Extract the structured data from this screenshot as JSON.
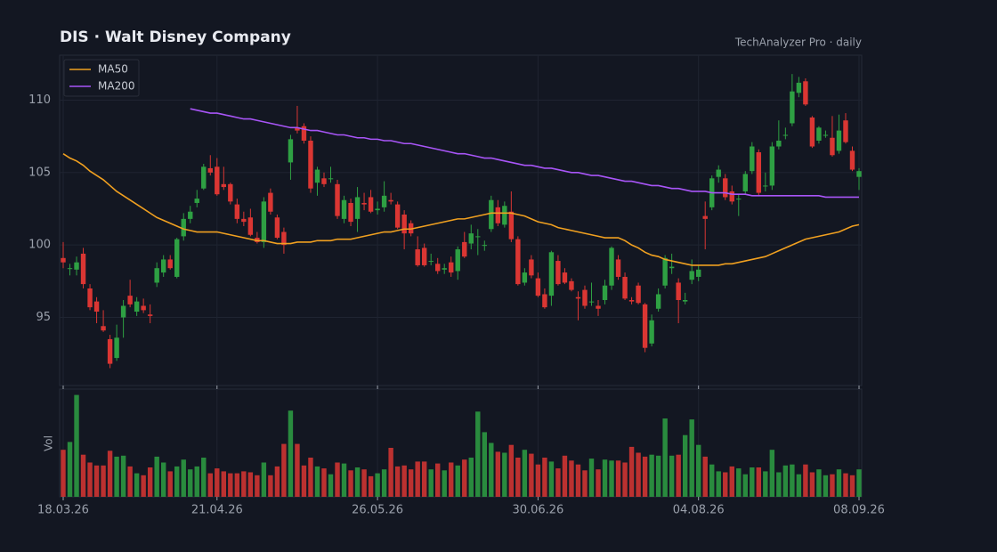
{
  "chart_data": {
    "type": "candlestick",
    "title": "DIS  ·  Walt Disney Company",
    "subtitle": "TechAnalyzer Pro · daily",
    "volume_label": "Vol",
    "up_color": "#2ea043",
    "down_color": "#da3633",
    "grid": true,
    "legend": "upper left",
    "ylim": [
      90.3,
      113.1
    ],
    "yticks": [
      95,
      100,
      105,
      110
    ],
    "vlim": [
      0,
      110
    ],
    "categories": [
      "18.03.26",
      null,
      null,
      null,
      null,
      null,
      null,
      null,
      null,
      null,
      null,
      null,
      null,
      null,
      null,
      null,
      null,
      null,
      null,
      null,
      null,
      null,
      null,
      "21.04.26",
      null,
      null,
      null,
      null,
      null,
      null,
      null,
      null,
      null,
      null,
      null,
      null,
      null,
      null,
      null,
      null,
      null,
      null,
      null,
      null,
      null,
      null,
      null,
      "26.05.26",
      null,
      null,
      null,
      null,
      null,
      null,
      null,
      null,
      null,
      null,
      null,
      null,
      null,
      null,
      null,
      null,
      null,
      null,
      null,
      null,
      null,
      null,
      null,
      "30.06.26",
      null,
      null,
      null,
      null,
      null,
      null,
      null,
      null,
      null,
      null,
      null,
      null,
      null,
      null,
      null,
      null,
      null,
      null,
      null,
      null,
      null,
      null,
      null,
      "04.08.26",
      null,
      null,
      null,
      null,
      null,
      null,
      null,
      null,
      null,
      null,
      null,
      null,
      null,
      null,
      null,
      null,
      null,
      null,
      null,
      null,
      null,
      null,
      null,
      "08.09.26"
    ],
    "ohlc": [
      [
        99.1,
        100.2,
        98.4,
        98.8
      ],
      [
        98.4,
        98.7,
        97.9,
        98.4
      ],
      [
        98.3,
        99.2,
        97.9,
        98.8
      ],
      [
        99.4,
        99.8,
        97.0,
        97.3
      ],
      [
        97.0,
        97.3,
        95.5,
        95.7
      ],
      [
        96.1,
        96.4,
        94.6,
        95.4
      ],
      [
        94.4,
        95.5,
        94.0,
        94.1
      ],
      [
        93.5,
        93.8,
        91.5,
        91.8
      ],
      [
        92.2,
        94.5,
        92.0,
        93.6
      ],
      [
        95.0,
        96.2,
        93.6,
        95.8
      ],
      [
        96.5,
        97.6,
        95.7,
        95.9
      ],
      [
        95.4,
        96.4,
        95.1,
        96.1
      ],
      [
        95.8,
        96.3,
        95.3,
        95.5
      ],
      [
        95.2,
        95.9,
        94.6,
        95.1
      ],
      [
        97.4,
        98.8,
        97.1,
        98.4
      ],
      [
        98.1,
        99.3,
        97.8,
        99.0
      ],
      [
        99.0,
        99.3,
        98.3,
        98.4
      ],
      [
        97.8,
        100.5,
        97.7,
        100.4
      ],
      [
        100.6,
        102.2,
        100.3,
        101.8
      ],
      [
        101.8,
        102.7,
        101.5,
        102.3
      ],
      [
        102.9,
        103.8,
        102.6,
        103.2
      ],
      [
        103.9,
        105.6,
        103.8,
        105.4
      ],
      [
        105.3,
        106.2,
        104.8,
        105.0
      ],
      [
        105.4,
        106.0,
        103.4,
        103.5
      ],
      [
        104.2,
        105.4,
        103.8,
        104.0
      ],
      [
        104.2,
        104.3,
        102.8,
        103.0
      ],
      [
        102.8,
        103.2,
        101.5,
        101.8
      ],
      [
        101.8,
        102.3,
        101.3,
        101.6
      ],
      [
        101.9,
        102.5,
        100.6,
        100.7
      ],
      [
        100.5,
        100.9,
        100.1,
        100.2
      ],
      [
        100.2,
        103.3,
        99.8,
        103.0
      ],
      [
        103.6,
        103.9,
        102.1,
        102.3
      ],
      [
        101.9,
        102.1,
        100.4,
        100.5
      ],
      [
        100.9,
        101.2,
        99.4,
        100.0
      ],
      [
        105.7,
        107.6,
        104.5,
        107.3
      ],
      [
        108.1,
        109.6,
        107.7,
        107.9
      ],
      [
        108.2,
        108.4,
        107.0,
        107.2
      ],
      [
        107.2,
        107.5,
        103.6,
        103.9
      ],
      [
        104.3,
        105.4,
        103.4,
        105.2
      ],
      [
        104.6,
        105.0,
        104.0,
        104.2
      ],
      [
        104.6,
        105.4,
        104.3,
        104.6
      ],
      [
        104.2,
        104.5,
        101.8,
        102.0
      ],
      [
        101.8,
        103.4,
        101.5,
        103.1
      ],
      [
        102.9,
        103.2,
        101.3,
        101.6
      ],
      [
        101.8,
        104.0,
        100.9,
        103.3
      ],
      [
        102.9,
        103.6,
        102.4,
        102.8
      ],
      [
        103.3,
        103.8,
        102.2,
        102.3
      ],
      [
        102.4,
        103.0,
        102.1,
        102.5
      ],
      [
        102.6,
        104.4,
        102.3,
        103.4
      ],
      [
        103.1,
        103.6,
        102.8,
        103.0
      ],
      [
        102.8,
        103.0,
        101.1,
        101.2
      ],
      [
        102.1,
        102.4,
        99.7,
        100.8
      ],
      [
        101.5,
        101.7,
        100.6,
        100.8
      ],
      [
        99.7,
        100.6,
        98.5,
        98.6
      ],
      [
        99.8,
        100.1,
        98.5,
        98.6
      ],
      [
        98.9,
        99.4,
        98.6,
        98.9
      ],
      [
        98.7,
        99.1,
        98.0,
        98.2
      ],
      [
        98.3,
        98.7,
        98.0,
        98.4
      ],
      [
        98.8,
        99.2,
        97.8,
        98.1
      ],
      [
        98.2,
        99.9,
        97.6,
        99.7
      ],
      [
        100.2,
        100.9,
        99.1,
        99.2
      ],
      [
        100.1,
        101.4,
        99.7,
        100.8
      ],
      [
        100.6,
        101.1,
        99.3,
        100.6
      ],
      [
        100.0,
        100.3,
        99.6,
        100.0
      ],
      [
        101.1,
        103.4,
        100.9,
        103.1
      ],
      [
        102.6,
        103.1,
        101.3,
        101.5
      ],
      [
        101.4,
        103.0,
        101.2,
        102.7
      ],
      [
        102.3,
        103.7,
        100.2,
        100.4
      ],
      [
        100.4,
        100.6,
        97.2,
        97.3
      ],
      [
        97.4,
        98.4,
        97.2,
        98.1
      ],
      [
        99.0,
        99.3,
        97.7,
        97.9
      ],
      [
        97.7,
        98.1,
        96.4,
        96.5
      ],
      [
        96.6,
        97.0,
        95.6,
        95.7
      ],
      [
        96.5,
        99.6,
        95.8,
        99.5
      ],
      [
        98.9,
        99.3,
        97.2,
        97.3
      ],
      [
        98.1,
        98.4,
        97.3,
        97.4
      ],
      [
        97.5,
        97.7,
        96.8,
        96.9
      ],
      [
        96.4,
        96.8,
        94.8,
        96.3
      ],
      [
        96.9,
        97.2,
        95.6,
        95.8
      ],
      [
        96.1,
        97.4,
        95.8,
        96.1
      ],
      [
        95.8,
        96.2,
        95.1,
        95.6
      ],
      [
        96.2,
        97.6,
        95.9,
        97.2
      ],
      [
        97.2,
        99.9,
        96.9,
        99.8
      ],
      [
        99.0,
        99.3,
        97.6,
        97.8
      ],
      [
        97.8,
        98.1,
        96.2,
        96.3
      ],
      [
        96.2,
        96.4,
        95.9,
        96.1
      ],
      [
        97.2,
        97.4,
        95.9,
        96.0
      ],
      [
        95.9,
        96.0,
        92.6,
        92.9
      ],
      [
        93.2,
        95.2,
        93.0,
        94.8
      ],
      [
        95.6,
        97.0,
        95.4,
        96.6
      ],
      [
        97.2,
        99.3,
        97.0,
        99.1
      ],
      [
        98.4,
        99.4,
        98.0,
        98.5
      ],
      [
        97.4,
        97.7,
        94.6,
        96.2
      ],
      [
        96.1,
        96.7,
        95.9,
        96.2
      ],
      [
        97.6,
        99.0,
        97.3,
        98.2
      ],
      [
        97.8,
        98.6,
        97.5,
        98.3
      ],
      [
        102.0,
        103.0,
        99.7,
        101.8
      ],
      [
        102.6,
        104.8,
        102.4,
        104.6
      ],
      [
        104.7,
        105.5,
        104.3,
        105.2
      ],
      [
        104.6,
        104.9,
        103.1,
        103.3
      ],
      [
        103.7,
        104.1,
        102.8,
        103.0
      ],
      [
        103.2,
        103.5,
        102.0,
        103.2
      ],
      [
        103.7,
        105.1,
        103.5,
        104.9
      ],
      [
        105.1,
        107.1,
        104.9,
        106.8
      ],
      [
        106.4,
        106.6,
        103.4,
        103.6
      ],
      [
        104.1,
        105.0,
        103.7,
        104.1
      ],
      [
        104.1,
        107.1,
        103.8,
        106.8
      ],
      [
        106.8,
        108.6,
        106.6,
        107.2
      ],
      [
        107.6,
        108.1,
        107.3,
        107.6
      ],
      [
        108.4,
        111.8,
        108.2,
        110.6
      ],
      [
        110.5,
        111.6,
        110.2,
        111.2
      ],
      [
        111.3,
        111.5,
        109.6,
        109.7
      ],
      [
        108.8,
        108.9,
        106.7,
        106.8
      ],
      [
        107.2,
        108.2,
        107.0,
        108.1
      ],
      [
        107.6,
        107.9,
        107.4,
        107.6
      ],
      [
        107.4,
        108.9,
        106.1,
        106.2
      ],
      [
        106.5,
        109.0,
        106.3,
        107.9
      ],
      [
        108.6,
        109.1,
        107.0,
        107.1
      ],
      [
        106.5,
        106.8,
        105.1,
        105.2
      ],
      [
        104.7,
        105.3,
        103.8,
        105.1
      ]
    ],
    "volume": [
      48,
      56,
      104,
      43,
      35,
      32,
      32,
      47,
      41,
      42,
      31,
      24,
      22,
      30,
      41,
      35,
      26,
      31,
      38,
      28,
      31,
      40,
      24,
      29,
      26,
      24,
      24,
      26,
      25,
      22,
      35,
      22,
      31,
      54,
      88,
      54,
      32,
      40,
      31,
      29,
      23,
      35,
      34,
      27,
      30,
      28,
      21,
      24,
      28,
      50,
      31,
      32,
      28,
      36,
      36,
      28,
      34,
      27,
      35,
      32,
      38,
      40,
      87,
      66,
      55,
      46,
      45,
      53,
      40,
      48,
      44,
      33,
      40,
      36,
      29,
      42,
      37,
      33,
      27,
      39,
      28,
      38,
      37,
      37,
      35,
      51,
      45,
      41,
      43,
      42,
      80,
      42,
      43,
      63,
      79,
      53,
      41,
      33,
      26,
      25,
      31,
      29,
      23,
      30,
      30,
      26,
      48,
      25,
      32,
      33,
      23,
      33,
      25,
      28,
      22,
      23,
      28,
      24,
      22,
      28
    ],
    "series": [
      {
        "name": "MA50",
        "color": "#f0a020",
        "values": [
          106.3,
          106.0,
          105.8,
          105.5,
          105.1,
          104.8,
          104.5,
          104.1,
          103.7,
          103.4,
          103.1,
          102.8,
          102.5,
          102.2,
          101.9,
          101.7,
          101.5,
          101.3,
          101.1,
          101.0,
          100.9,
          100.9,
          100.9,
          100.9,
          100.8,
          100.7,
          100.6,
          100.5,
          100.4,
          100.3,
          100.3,
          100.2,
          100.1,
          100.1,
          100.1,
          100.2,
          100.2,
          100.2,
          100.3,
          100.3,
          100.3,
          100.4,
          100.4,
          100.4,
          100.5,
          100.6,
          100.7,
          100.8,
          100.9,
          100.9,
          101.0,
          101.1,
          101.1,
          101.2,
          101.3,
          101.4,
          101.5,
          101.6,
          101.7,
          101.8,
          101.8,
          101.9,
          102.0,
          102.1,
          102.2,
          102.2,
          102.2,
          102.2,
          102.1,
          102.0,
          101.8,
          101.6,
          101.5,
          101.4,
          101.2,
          101.1,
          101.0,
          100.9,
          100.8,
          100.7,
          100.6,
          100.5,
          100.5,
          100.5,
          100.3,
          100.0,
          99.8,
          99.5,
          99.3,
          99.2,
          99.0,
          98.9,
          98.8,
          98.7,
          98.6,
          98.6,
          98.6,
          98.6,
          98.6,
          98.7,
          98.7,
          98.8,
          98.9,
          99.0,
          99.1,
          99.2,
          99.4,
          99.6,
          99.8,
          100.0,
          100.2,
          100.4,
          100.5,
          100.6,
          100.7,
          100.8,
          100.9,
          101.1,
          101.3,
          101.4
        ]
      },
      {
        "name": "MA200",
        "color": "#a855f7",
        "values": [
          null,
          null,
          null,
          null,
          null,
          null,
          null,
          null,
          null,
          null,
          null,
          null,
          null,
          null,
          null,
          null,
          null,
          null,
          null,
          109.4,
          109.3,
          109.2,
          109.1,
          109.1,
          109.0,
          108.9,
          108.8,
          108.7,
          108.7,
          108.6,
          108.5,
          108.4,
          108.3,
          108.2,
          108.1,
          108.1,
          108.0,
          107.9,
          107.9,
          107.8,
          107.7,
          107.6,
          107.6,
          107.5,
          107.4,
          107.4,
          107.3,
          107.3,
          107.2,
          107.2,
          107.1,
          107.0,
          107.0,
          106.9,
          106.8,
          106.7,
          106.6,
          106.5,
          106.4,
          106.3,
          106.3,
          106.2,
          106.1,
          106.0,
          106.0,
          105.9,
          105.8,
          105.7,
          105.6,
          105.5,
          105.5,
          105.4,
          105.3,
          105.3,
          105.2,
          105.1,
          105.0,
          105.0,
          104.9,
          104.8,
          104.8,
          104.7,
          104.6,
          104.5,
          104.4,
          104.4,
          104.3,
          104.2,
          104.1,
          104.1,
          104.0,
          103.9,
          103.9,
          103.8,
          103.7,
          103.7,
          103.7,
          103.6,
          103.6,
          103.6,
          103.5,
          103.5,
          103.5,
          103.4,
          103.4,
          103.4,
          103.4,
          103.4,
          103.4,
          103.4,
          103.4,
          103.4,
          103.4,
          103.4,
          103.3,
          103.3,
          103.3,
          103.3,
          103.3,
          103.3
        ]
      }
    ]
  }
}
